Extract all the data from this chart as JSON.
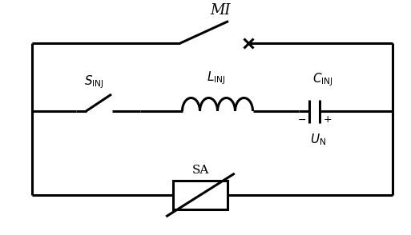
{
  "bg_color": "#ffffff",
  "line_color": "#000000",
  "lw": 2.2,
  "figsize": [
    5.13,
    2.94
  ],
  "dpi": 100,
  "xlim": [
    0,
    10.26
  ],
  "ylim": [
    0,
    5.88
  ]
}
